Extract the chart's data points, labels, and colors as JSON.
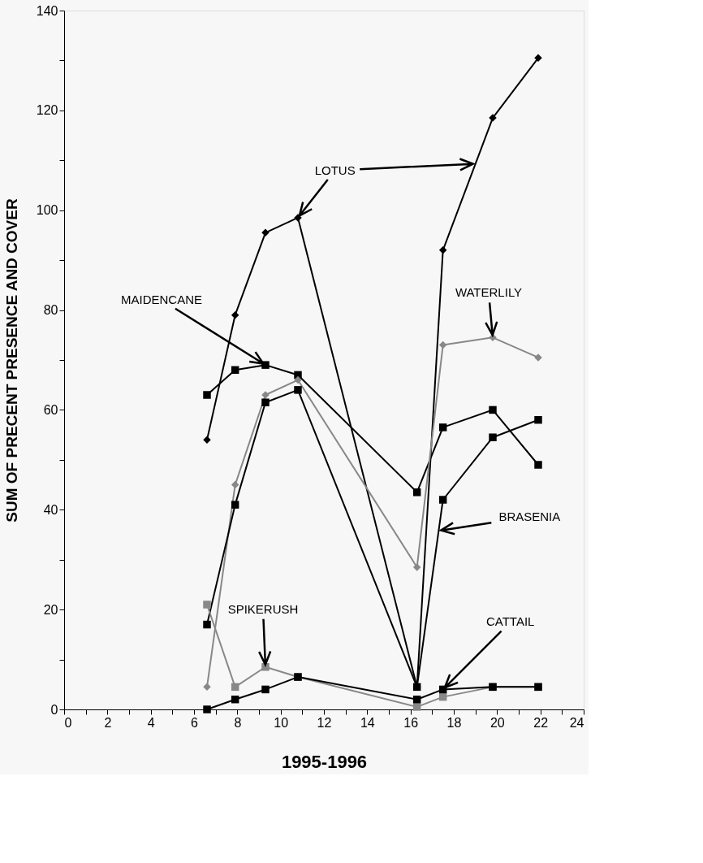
{
  "chart_data": {
    "type": "line",
    "xlabel": "1995-1996",
    "ylabel": "SUM OF PRECENT PRESENCE AND COVER",
    "x": [
      6.6,
      7.9,
      9.3,
      10.8,
      16.3,
      17.5,
      19.8,
      21.9
    ],
    "series": [
      {
        "color": "#000000",
        "marker": "diamond",
        "values": [
          54,
          79,
          95.5,
          98.5,
          4.5,
          92,
          118.5,
          130.5
        ]
      },
      {
        "color": "#000000",
        "marker": "square",
        "values": [
          63,
          68,
          69,
          67,
          43.5,
          56.5,
          60,
          49
        ]
      },
      {
        "color": "#888888",
        "marker": "diamond",
        "values": [
          4.5,
          45,
          63,
          66,
          28.5,
          73,
          74.5,
          70.5
        ]
      },
      {
        "color": "#000000",
        "marker": "square",
        "values": [
          17,
          41,
          61.5,
          64,
          4.5,
          42,
          54.5,
          58
        ]
      },
      {
        "color": "#888888",
        "marker": "square",
        "values": [
          21,
          4.5,
          8.5,
          6.5,
          0.5,
          2.5,
          4.5,
          4.5
        ]
      },
      {
        "color": "#000000",
        "marker": "square",
        "values": [
          0,
          2,
          4,
          6.5,
          2,
          4,
          4.5,
          4.5
        ]
      }
    ],
    "xlim": [
      0,
      24
    ],
    "xticks": [
      0,
      {
        "value": 1,
        "label": null
      },
      2,
      {
        "value": 3,
        "label": null
      },
      4,
      {
        "value": 5,
        "label": null
      },
      6,
      {
        "value": 7,
        "label": null
      },
      8,
      {
        "value": 9,
        "label": null
      },
      10,
      {
        "value": 11,
        "label": null
      },
      12,
      {
        "value": 13,
        "label": null
      },
      14,
      {
        "value": 15,
        "label": null
      },
      16,
      {
        "value": 17,
        "label": null
      },
      18,
      {
        "value": 19,
        "label": null
      },
      20,
      {
        "value": 21,
        "label": null
      },
      22,
      {
        "value": 23,
        "label": null
      },
      24
    ],
    "ylim": [
      0,
      140
    ],
    "yticks": [
      0,
      {
        "value": 10,
        "label": null
      },
      20,
      {
        "value": 30,
        "label": null
      },
      40,
      {
        "value": 50,
        "label": null
      },
      60,
      {
        "value": 70,
        "label": null
      },
      80,
      {
        "value": 90,
        "label": null
      },
      100,
      {
        "value": 110,
        "label": null
      },
      120,
      {
        "value": 130,
        "label": null
      },
      140
    ],
    "grid": false,
    "line_style": "solid",
    "annotations": [
      "LOTUS",
      "MAIDENCANE",
      "WATERLILY",
      "BRASENIA",
      "SPIKERUSH",
      "CATTAIL"
    ]
  }
}
